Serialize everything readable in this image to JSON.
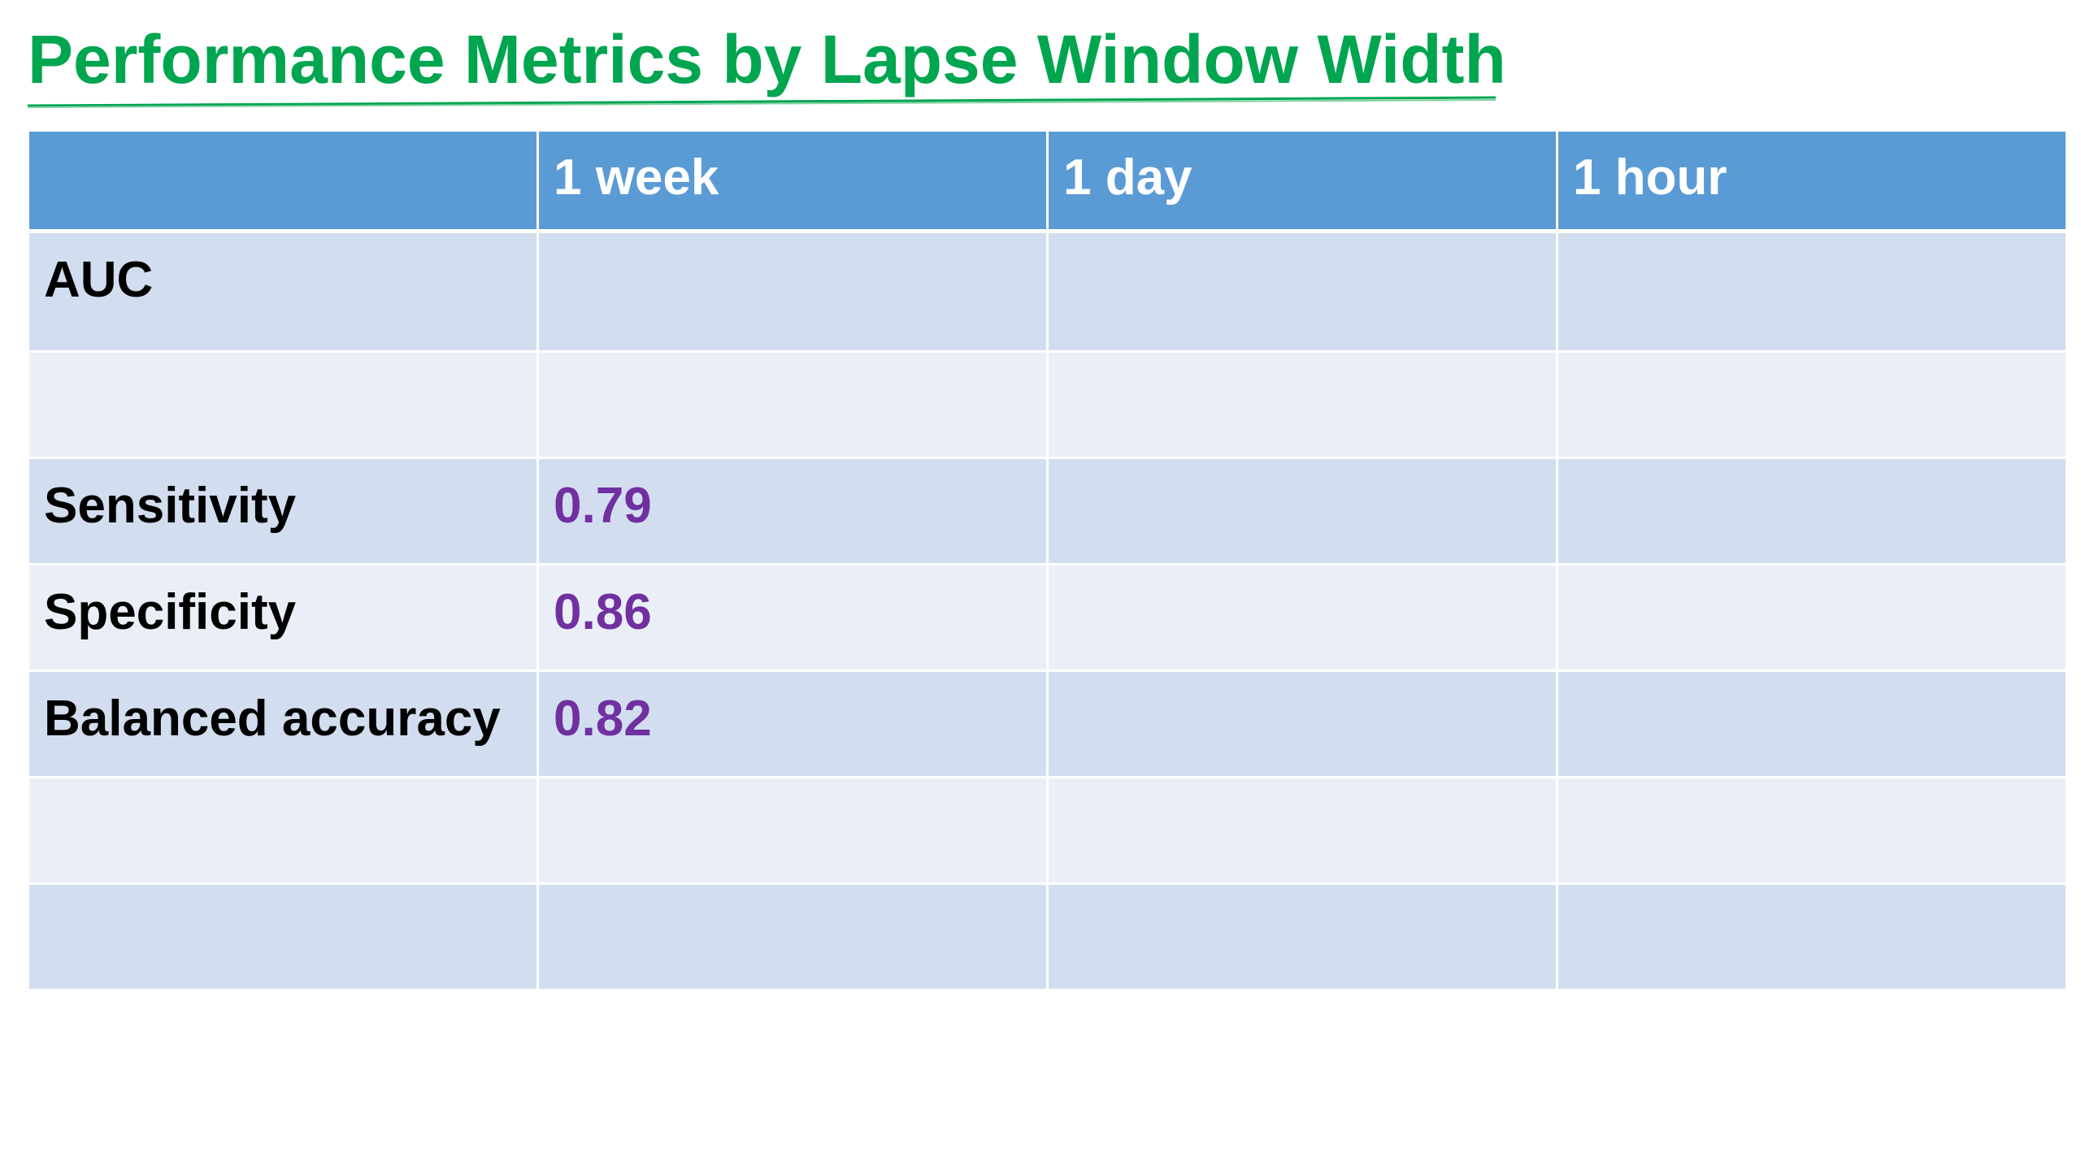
{
  "title": "Performance Metrics by Lapse Window Width",
  "colors": {
    "title": "#00a550",
    "header_background": "#5b9bd5",
    "row_dark": "#d2deef",
    "row_light": "#eaeff7",
    "value_text": "#7030a0"
  },
  "table": {
    "columns": [
      "",
      "1 week",
      "1 day",
      "1 hour"
    ],
    "rows": [
      {
        "metric": "AUC",
        "week": "",
        "day": "",
        "hour": ""
      },
      {
        "metric": "",
        "week": "",
        "day": "",
        "hour": ""
      },
      {
        "metric": "Sensitivity",
        "week": "0.79",
        "day": "",
        "hour": ""
      },
      {
        "metric": "Specificity",
        "week": "0.86",
        "day": "",
        "hour": ""
      },
      {
        "metric": "Balanced accuracy",
        "week": "0.82",
        "day": "",
        "hour": ""
      },
      {
        "metric": "",
        "week": "",
        "day": "",
        "hour": ""
      },
      {
        "metric": "",
        "week": "",
        "day": "",
        "hour": ""
      }
    ]
  }
}
